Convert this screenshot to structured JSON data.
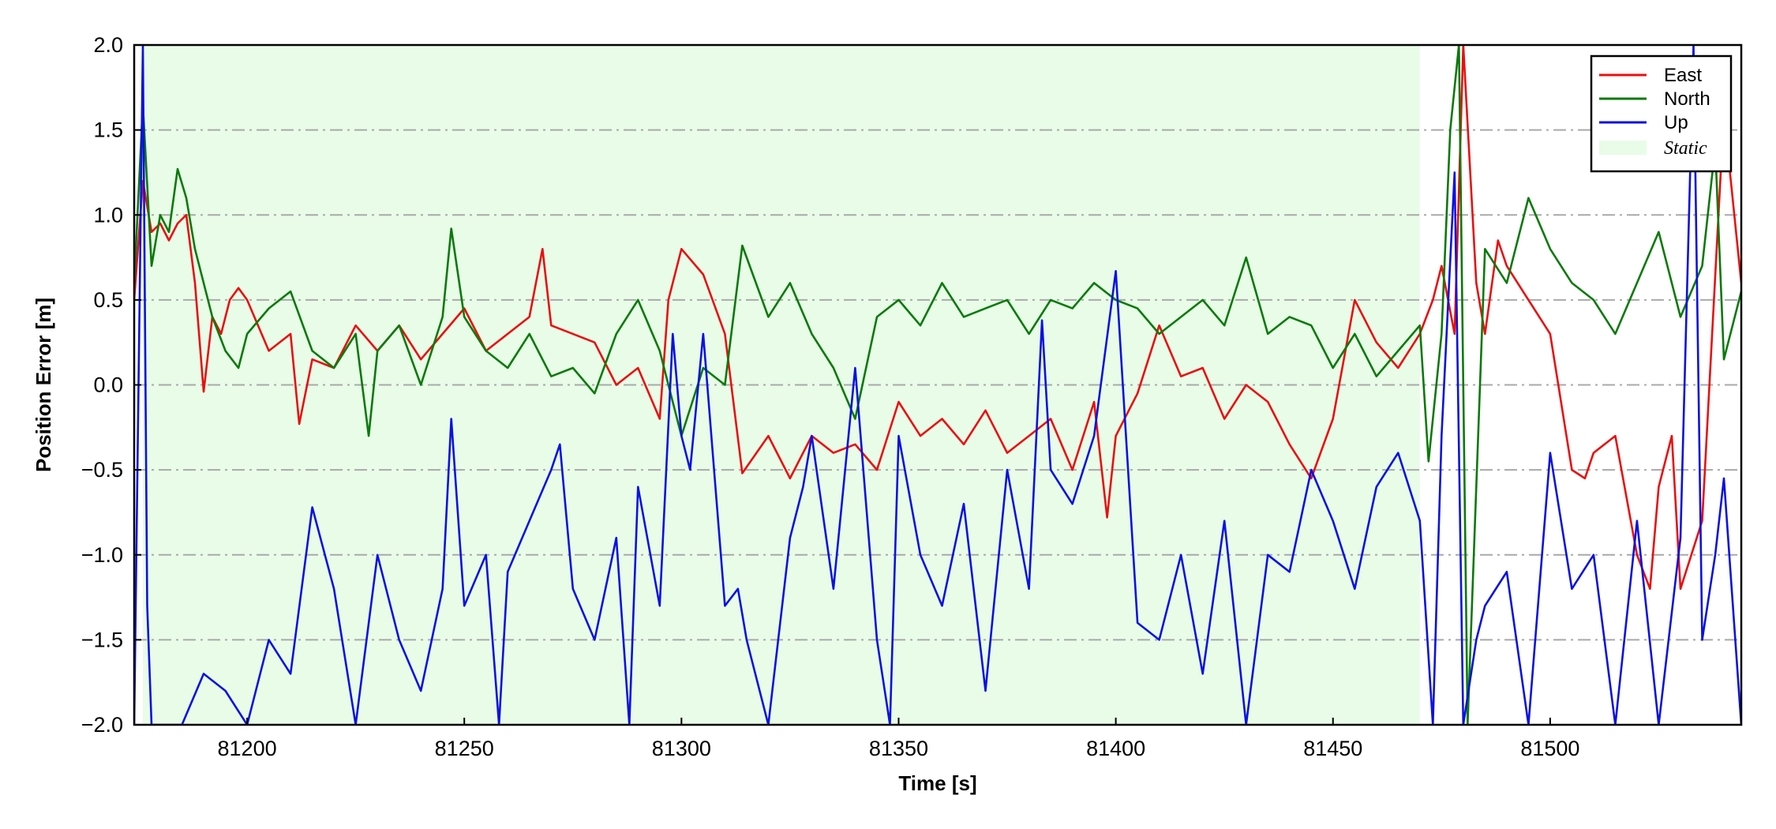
{
  "chart_data": {
    "type": "line",
    "xlabel": "Time [s]",
    "ylabel": "Position Error [m]",
    "xlim": [
      81174,
      81544
    ],
    "ylim": [
      -2.0,
      2.0
    ],
    "x_ticks": [
      81200,
      81250,
      81300,
      81350,
      81400,
      81450,
      81500
    ],
    "x_tick_labels": [
      "81200",
      "81250",
      "81300",
      "81350",
      "81400",
      "81450",
      "81500"
    ],
    "y_ticks": [
      2.0,
      1.5,
      1.0,
      0.5,
      0.0,
      -0.5,
      -1.0,
      -1.5,
      -2.0
    ],
    "y_tick_labels": [
      "2.0",
      "1.5",
      "1.0",
      "0.5",
      "0.0",
      "−0.5",
      "−1.0",
      "−1.5",
      "−2.0"
    ],
    "grid": "horizontal dash-dot",
    "legend_placement": "top-right",
    "static_region": {
      "label": "Static",
      "x_start": 81176,
      "x_end": 81470,
      "color": "#e8fce8"
    },
    "series": [
      {
        "name": "East",
        "color": "#e81010",
        "x": [
          81174,
          81176,
          81178,
          81180,
          81182,
          81184,
          81186,
          81188,
          81190,
          81192,
          81194,
          81196,
          81198,
          81200,
          81205,
          81210,
          81212,
          81215,
          81220,
          81225,
          81230,
          81235,
          81240,
          81245,
          81250,
          81255,
          81260,
          81265,
          81268,
          81270,
          81275,
          81280,
          81285,
          81290,
          81295,
          81297,
          81300,
          81305,
          81310,
          81314,
          81320,
          81325,
          81330,
          81335,
          81340,
          81345,
          81350,
          81355,
          81360,
          81365,
          81370,
          81375,
          81380,
          81385,
          81390,
          81395,
          81398,
          81400,
          81405,
          81410,
          81415,
          81420,
          81425,
          81430,
          81435,
          81440,
          81445,
          81450,
          81455,
          81460,
          81465,
          81470,
          81473,
          81475,
          81478,
          81480,
          81483,
          81485,
          81488,
          81490,
          81495,
          81500,
          81505,
          81508,
          81510,
          81515,
          81520,
          81523,
          81525,
          81528,
          81530,
          81535,
          81540,
          81544
        ],
        "y": [
          0.5,
          1.2,
          0.9,
          0.95,
          0.85,
          0.95,
          1.0,
          0.6,
          -0.04,
          0.4,
          0.3,
          0.5,
          0.57,
          0.5,
          0.2,
          0.3,
          -0.23,
          0.15,
          0.1,
          0.35,
          0.2,
          0.35,
          0.15,
          0.3,
          0.45,
          0.2,
          0.3,
          0.4,
          0.8,
          0.35,
          0.3,
          0.25,
          0.0,
          0.1,
          -0.2,
          0.5,
          0.8,
          0.65,
          0.3,
          -0.52,
          -0.3,
          -0.55,
          -0.3,
          -0.4,
          -0.35,
          -0.5,
          -0.1,
          -0.3,
          -0.2,
          -0.35,
          -0.15,
          -0.4,
          -0.3,
          -0.2,
          -0.5,
          -0.1,
          -0.78,
          -0.3,
          -0.05,
          0.35,
          0.05,
          0.1,
          -0.2,
          0.0,
          -0.1,
          -0.35,
          -0.55,
          -0.2,
          0.5,
          0.25,
          0.1,
          0.3,
          0.5,
          0.7,
          0.3,
          2.0,
          0.6,
          0.3,
          0.85,
          0.7,
          0.5,
          0.3,
          -0.5,
          -0.55,
          -0.4,
          -0.3,
          -1.0,
          -1.2,
          -0.6,
          -0.3,
          -1.2,
          -0.8,
          1.6,
          0.6
        ]
      },
      {
        "name": "North",
        "color": "#0a7a0a",
        "x": [
          81174,
          81176,
          81178,
          81180,
          81182,
          81184,
          81186,
          81188,
          81190,
          81192,
          81195,
          81198,
          81200,
          81205,
          81210,
          81215,
          81220,
          81225,
          81228,
          81230,
          81235,
          81240,
          81245,
          81247,
          81250,
          81255,
          81260,
          81265,
          81270,
          81275,
          81280,
          81285,
          81290,
          81295,
          81300,
          81305,
          81310,
          81314,
          81320,
          81325,
          81330,
          81335,
          81340,
          81345,
          81350,
          81355,
          81360,
          81365,
          81370,
          81375,
          81380,
          81385,
          81390,
          81395,
          81400,
          81405,
          81410,
          81415,
          81420,
          81425,
          81430,
          81435,
          81440,
          81445,
          81450,
          81455,
          81460,
          81465,
          81470,
          81472,
          81475,
          81477,
          81479,
          81481,
          81485,
          81490,
          81495,
          81500,
          81505,
          81510,
          81515,
          81520,
          81525,
          81530,
          81535,
          81538,
          81540,
          81544
        ],
        "y": [
          0.6,
          1.65,
          0.7,
          1.0,
          0.9,
          1.27,
          1.1,
          0.8,
          0.6,
          0.4,
          0.2,
          0.1,
          0.3,
          0.45,
          0.55,
          0.2,
          0.1,
          0.3,
          -0.3,
          0.2,
          0.35,
          0.0,
          0.4,
          0.92,
          0.4,
          0.2,
          0.1,
          0.3,
          0.05,
          0.1,
          -0.05,
          0.3,
          0.5,
          0.2,
          -0.3,
          0.1,
          0.0,
          0.82,
          0.4,
          0.6,
          0.3,
          0.1,
          -0.2,
          0.4,
          0.5,
          0.35,
          0.6,
          0.4,
          0.45,
          0.5,
          0.3,
          0.5,
          0.45,
          0.6,
          0.5,
          0.45,
          0.3,
          0.4,
          0.5,
          0.35,
          0.75,
          0.3,
          0.4,
          0.35,
          0.1,
          0.3,
          0.05,
          0.2,
          0.35,
          -0.45,
          0.3,
          1.5,
          2.0,
          -2.0,
          0.8,
          0.6,
          1.1,
          0.8,
          0.6,
          0.5,
          0.3,
          0.6,
          0.9,
          0.4,
          0.7,
          1.4,
          0.15,
          0.55
        ]
      },
      {
        "name": "Up",
        "color": "#0b12e0",
        "x": [
          81174,
          81176,
          81177,
          81178,
          81180,
          81185,
          81190,
          81195,
          81200,
          81205,
          81210,
          81215,
          81220,
          81225,
          81230,
          81235,
          81240,
          81245,
          81247,
          81250,
          81255,
          81258,
          81260,
          81265,
          81270,
          81272,
          81275,
          81280,
          81285,
          81288,
          81290,
          81295,
          81298,
          81300,
          81302,
          81305,
          81310,
          81313,
          81315,
          81320,
          81325,
          81328,
          81330,
          81335,
          81340,
          81345,
          81348,
          81350,
          81355,
          81360,
          81365,
          81370,
          81375,
          81380,
          81383,
          81385,
          81390,
          81395,
          81400,
          81405,
          81410,
          81415,
          81420,
          81425,
          81430,
          81435,
          81440,
          81445,
          81450,
          81455,
          81460,
          81465,
          81470,
          81473,
          81475,
          81478,
          81480,
          81483,
          81485,
          81490,
          81495,
          81500,
          81505,
          81510,
          81515,
          81520,
          81525,
          81530,
          81533,
          81535,
          81538,
          81540,
          81544
        ],
        "y": [
          -2.0,
          2.0,
          -1.3,
          -2.0,
          -2.0,
          -2.0,
          -1.7,
          -1.8,
          -2.0,
          -1.5,
          -1.7,
          -0.72,
          -1.2,
          -2.0,
          -1.0,
          -1.5,
          -1.8,
          -1.2,
          -0.2,
          -1.3,
          -1.0,
          -2.0,
          -1.1,
          -0.8,
          -0.5,
          -0.35,
          -1.2,
          -1.5,
          -0.9,
          -2.0,
          -0.6,
          -1.3,
          0.3,
          -0.3,
          -0.5,
          0.3,
          -1.3,
          -1.2,
          -1.5,
          -2.0,
          -0.9,
          -0.6,
          -0.3,
          -1.2,
          0.1,
          -1.5,
          -2.0,
          -0.3,
          -1.0,
          -1.3,
          -0.7,
          -1.8,
          -0.5,
          -1.2,
          0.38,
          -0.5,
          -0.7,
          -0.3,
          0.67,
          -1.4,
          -1.5,
          -1.0,
          -1.7,
          -0.8,
          -2.0,
          -1.0,
          -1.1,
          -0.5,
          -0.8,
          -1.2,
          -0.6,
          -0.4,
          -0.8,
          -2.0,
          -0.3,
          1.25,
          -2.0,
          -1.5,
          -1.3,
          -1.1,
          -2.0,
          -0.4,
          -1.2,
          -1.0,
          -2.0,
          -0.8,
          -2.0,
          -0.9,
          2.0,
          -1.5,
          -1.0,
          -0.55,
          -2.0
        ]
      }
    ]
  }
}
